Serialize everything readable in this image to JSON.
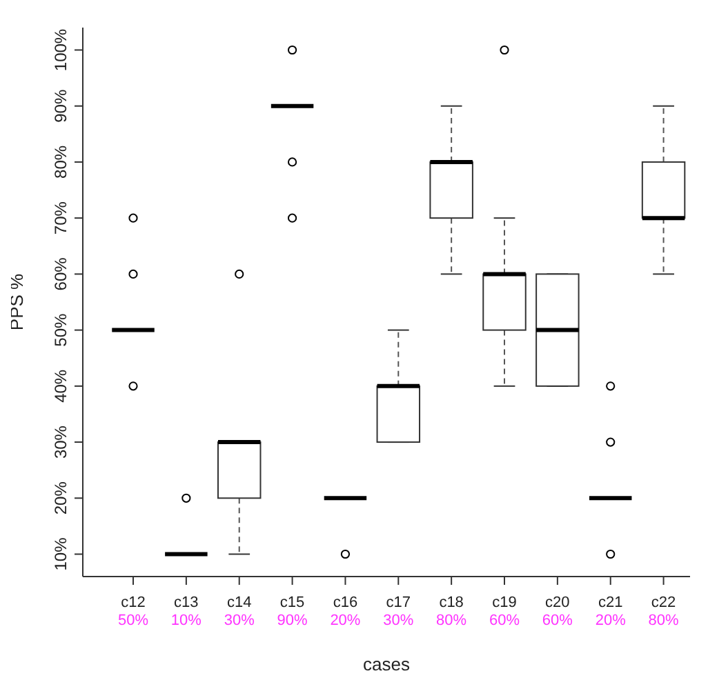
{
  "chart_data": {
    "type": "box",
    "xlabel": "cases",
    "ylabel": "PPS %",
    "categories": [
      "c12",
      "c13",
      "c14",
      "c15",
      "c16",
      "c17",
      "c18",
      "c19",
      "c20",
      "c21",
      "c22"
    ],
    "value_labels": [
      "50%",
      "10%",
      "30%",
      "90%",
      "20%",
      "30%",
      "80%",
      "60%",
      "60%",
      "20%",
      "80%"
    ],
    "boxes": [
      {
        "low": 50,
        "q1": 50,
        "median": 50,
        "q3": 50,
        "high": 50,
        "outliers": [
          40,
          60,
          70
        ]
      },
      {
        "low": 10,
        "q1": 10,
        "median": 10,
        "q3": 10,
        "high": 10,
        "outliers": [
          20
        ]
      },
      {
        "low": 10,
        "q1": 20,
        "median": 30,
        "q3": 30,
        "high": 30,
        "outliers": [
          60
        ]
      },
      {
        "low": 90,
        "q1": 90,
        "median": 90,
        "q3": 90,
        "high": 90,
        "outliers": [
          70,
          80,
          100
        ]
      },
      {
        "low": 20,
        "q1": 20,
        "median": 20,
        "q3": 20,
        "high": 20,
        "outliers": [
          10
        ]
      },
      {
        "low": 30,
        "q1": 30,
        "median": 40,
        "q3": 40,
        "high": 50
      },
      {
        "low": 60,
        "q1": 70,
        "median": 80,
        "q3": 80,
        "high": 90
      },
      {
        "low": 40,
        "q1": 50,
        "median": 60,
        "q3": 60,
        "high": 70,
        "outliers": [
          100
        ]
      },
      {
        "low": 40,
        "q1": 40,
        "median": 50,
        "q3": 60,
        "high": 60
      },
      {
        "low": 20,
        "q1": 20,
        "median": 20,
        "q3": 20,
        "high": 20,
        "outliers": [
          10,
          30,
          40
        ]
      },
      {
        "low": 60,
        "q1": 70,
        "median": 70,
        "q3": 80,
        "high": 90
      }
    ],
    "ylim": [
      6,
      104
    ],
    "yticks": [
      {
        "value": 10,
        "label": "10%"
      },
      {
        "value": 20,
        "label": "20%"
      },
      {
        "value": 30,
        "label": "30%"
      },
      {
        "value": 40,
        "label": "40%"
      },
      {
        "value": 50,
        "label": "50%"
      },
      {
        "value": 60,
        "label": "60%"
      },
      {
        "value": 70,
        "label": "70%"
      },
      {
        "value": 80,
        "label": "80%"
      },
      {
        "value": 90,
        "label": "90%"
      },
      {
        "value": 100,
        "label": "100%"
      }
    ],
    "grid": false,
    "legend": false
  }
}
